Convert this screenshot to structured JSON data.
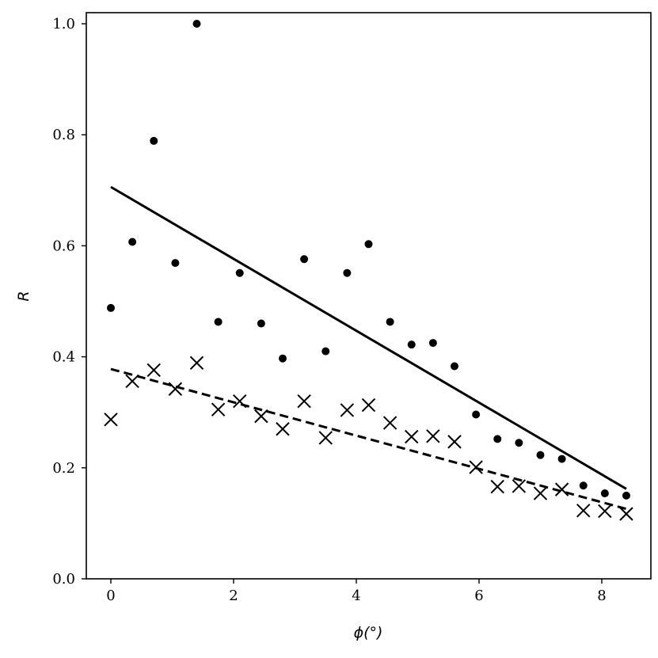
{
  "chart_data": {
    "type": "scatter",
    "title": "",
    "xlabel": "ϕ(°)",
    "ylabel": "R",
    "xlim": [
      -0.4,
      8.8
    ],
    "ylim": [
      0.0,
      1.02
    ],
    "xticks": [
      0,
      2,
      4,
      6,
      8
    ],
    "xtick_labels": [
      "0",
      "2",
      "4",
      "6",
      "8"
    ],
    "yticks": [
      0.0,
      0.2,
      0.4,
      0.6,
      0.8,
      1.0
    ],
    "ytick_labels": [
      "0.0",
      "0.2",
      "0.4",
      "0.6",
      "0.8",
      "1.0"
    ],
    "grid": false,
    "series": [
      {
        "marker": "dot",
        "x": [
          0.0,
          0.35,
          0.7,
          1.05,
          1.4,
          1.75,
          2.1,
          2.45,
          2.8,
          3.15,
          3.5,
          3.85,
          4.2,
          4.55,
          4.9,
          5.25,
          5.6,
          5.95,
          6.3,
          6.65,
          7.0,
          7.35,
          7.7,
          8.05,
          8.4
        ],
        "y": [
          0.488,
          0.607,
          0.789,
          0.569,
          1.0,
          0.463,
          0.551,
          0.46,
          0.397,
          0.576,
          0.41,
          0.551,
          0.603,
          0.463,
          0.422,
          0.425,
          0.383,
          0.296,
          0.252,
          0.245,
          0.223,
          0.216,
          0.168,
          0.154,
          0.15
        ]
      },
      {
        "marker": "x",
        "x": [
          0.0,
          0.35,
          0.7,
          1.05,
          1.4,
          1.75,
          2.1,
          2.45,
          2.8,
          3.15,
          3.5,
          3.85,
          4.2,
          4.55,
          4.9,
          5.25,
          5.6,
          5.95,
          6.3,
          6.65,
          7.0,
          7.35,
          7.7,
          8.05,
          8.4
        ],
        "y": [
          0.287,
          0.356,
          0.376,
          0.342,
          0.389,
          0.305,
          0.32,
          0.293,
          0.27,
          0.32,
          0.254,
          0.304,
          0.313,
          0.281,
          0.256,
          0.257,
          0.247,
          0.201,
          0.166,
          0.167,
          0.154,
          0.161,
          0.123,
          0.122,
          0.117
        ]
      }
    ],
    "fit_lines": [
      {
        "style": "solid",
        "x": [
          0.0,
          8.4
        ],
        "y": [
          0.706,
          0.162
        ]
      },
      {
        "style": "dashed",
        "x": [
          0.0,
          8.4
        ],
        "y": [
          0.378,
          0.126
        ]
      }
    ]
  }
}
